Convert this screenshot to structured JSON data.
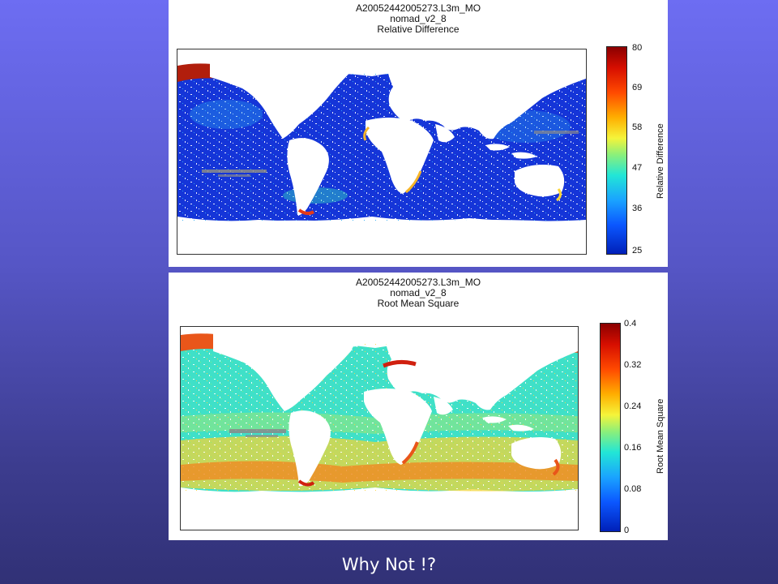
{
  "slide": {
    "caption": "Why Not !?",
    "background_top": "#6d6df2",
    "background_bottom": "#313176"
  },
  "maps": [
    {
      "title_lines": [
        "A20052442005273.L3m_MO",
        "nomad_v2_8",
        "Relative Difference"
      ],
      "colorbar_label": "Relative Difference",
      "colorbar_ticks": [
        "80",
        "69",
        "58",
        "47",
        "36",
        "25"
      ],
      "colorbar_min": 25,
      "colorbar_max": 80,
      "ocean_color": "#1535d8",
      "high_latitude_color": "#b11e0c",
      "missing_color": "#8a8a8a",
      "land_color": "#ffffff"
    },
    {
      "title_lines": [
        "A20052442005273.L3m_MO",
        "nomad_v2_8",
        "Root Mean Square"
      ],
      "colorbar_label": "Root Mean Square",
      "colorbar_ticks": [
        "0.4",
        "0.32",
        "0.24",
        "0.16",
        "0.08",
        "0"
      ],
      "colorbar_min": 0,
      "colorbar_max": 0.4,
      "ocean_color": "#3fe0c8",
      "high_latitude_color": "#e9561a",
      "missing_color": "#8a8a8a",
      "land_color": "#ffffff"
    }
  ]
}
